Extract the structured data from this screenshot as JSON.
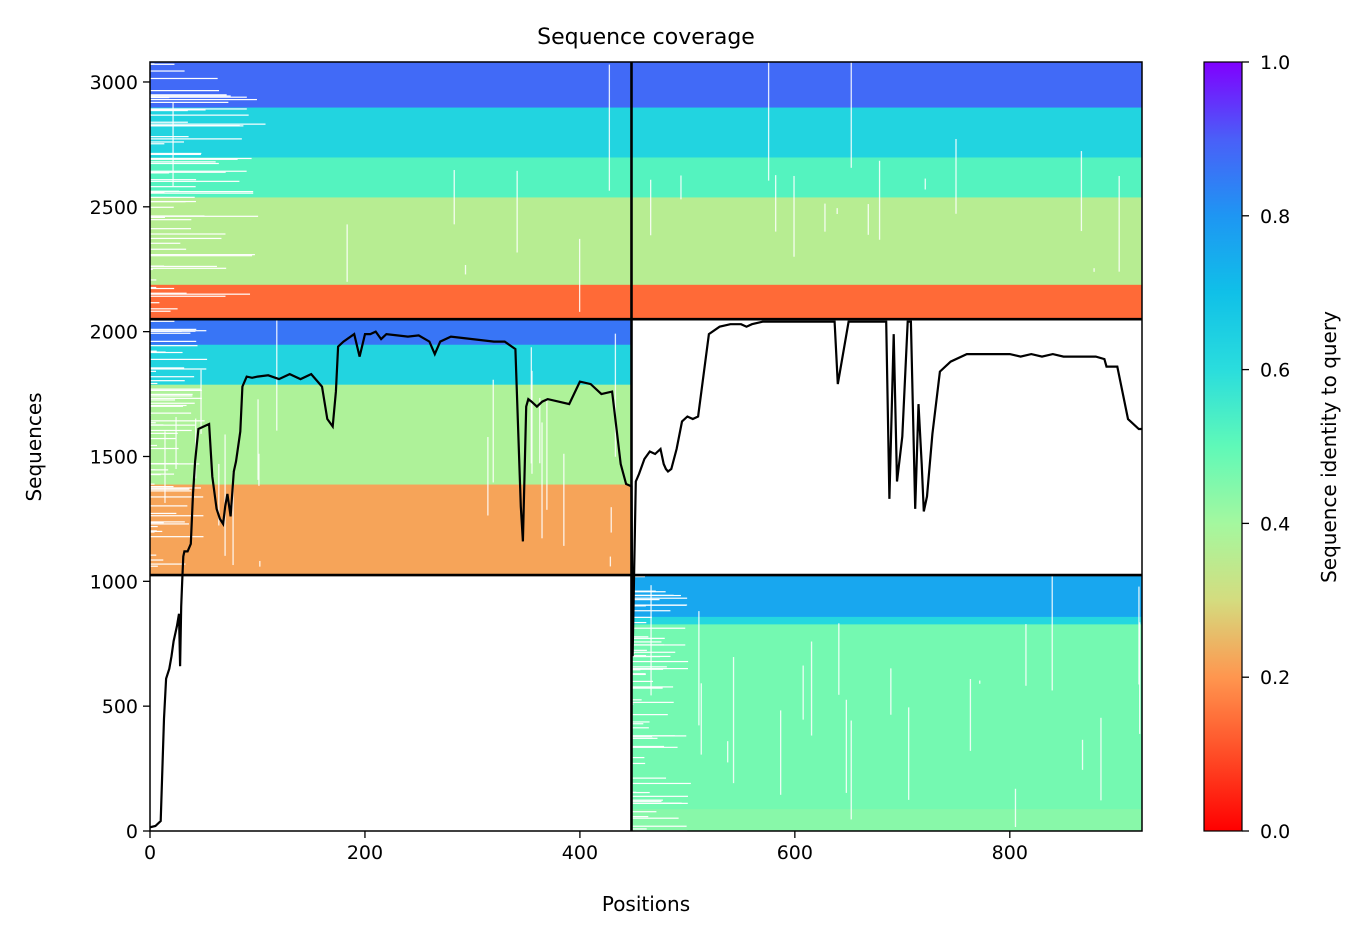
{
  "chart_data": {
    "type": "heatmap",
    "title": "Sequence coverage",
    "xlabel": "Positions",
    "ylabel": "Sequences",
    "xlim": [
      0,
      923
    ],
    "ylim": [
      0,
      3080
    ],
    "x_ticks": [
      0,
      200,
      400,
      600,
      800
    ],
    "y_ticks": [
      0,
      500,
      1000,
      1500,
      2000,
      2500,
      3000
    ],
    "colorbar": {
      "label": "Sequence identity to query",
      "colormap": "rainbow_r",
      "range": [
        0,
        1
      ],
      "ticks": [
        "0.0",
        "0.2",
        "0.4",
        "0.6",
        "0.8",
        "1.0"
      ],
      "stops": [
        {
          "value": 0.0,
          "color": "#ff0000"
        },
        {
          "value": 0.1,
          "color": "#ff4d27"
        },
        {
          "value": 0.2,
          "color": "#ff964f"
        },
        {
          "value": 0.3,
          "color": "#d4dc7f"
        },
        {
          "value": 0.4,
          "color": "#a4f89f"
        },
        {
          "value": 0.5,
          "color": "#5ff9b8"
        },
        {
          "value": 0.6,
          "color": "#2adddd"
        },
        {
          "value": 0.7,
          "color": "#10c0e8"
        },
        {
          "value": 0.8,
          "color": "#1e96f3"
        },
        {
          "value": 0.9,
          "color": "#4a5ff8"
        },
        {
          "value": 1.0,
          "color": "#8000ff"
        }
      ]
    },
    "chain_boundaries": {
      "x": [
        448
      ],
      "y": [
        1025,
        2050
      ]
    },
    "blocks": [
      {
        "x": [
          448,
          923
        ],
        "y": [
          0,
          1025
        ],
        "bands": [
          {
            "y0": 0,
            "y1": 90,
            "identity": 0.44
          },
          {
            "y0": 90,
            "y1": 830,
            "identity": 0.47
          },
          {
            "y0": 830,
            "y1": 860,
            "identity": 0.62
          },
          {
            "y0": 860,
            "y1": 1025,
            "identity": 0.76
          }
        ]
      },
      {
        "x": [
          0,
          448
        ],
        "y": [
          1025,
          2050
        ],
        "bands": [
          {
            "y0": 1025,
            "y1": 1390,
            "identity": 0.22
          },
          {
            "y0": 1390,
            "y1": 1790,
            "identity": 0.38
          },
          {
            "y0": 1790,
            "y1": 1950,
            "identity": 0.63
          },
          {
            "y0": 1950,
            "y1": 2050,
            "identity": 0.86
          }
        ]
      },
      {
        "x": [
          0,
          923
        ],
        "y": [
          2050,
          3080
        ],
        "bands": [
          {
            "y0": 2050,
            "y1": 2190,
            "identity": 0.14
          },
          {
            "y0": 2190,
            "y1": 2540,
            "identity": 0.36
          },
          {
            "y0": 2540,
            "y1": 2700,
            "identity": 0.52
          },
          {
            "y0": 2700,
            "y1": 2900,
            "identity": 0.63
          },
          {
            "y0": 2900,
            "y1": 3080,
            "identity": 0.88
          }
        ]
      }
    ],
    "coverage_line": {
      "color": "#000000",
      "x": [
        0,
        5,
        10,
        13,
        15,
        18,
        20,
        22,
        25,
        27,
        28,
        29,
        30,
        31,
        32,
        35,
        38,
        40,
        42,
        45,
        50,
        55,
        58,
        62,
        65,
        68,
        70,
        72,
        75,
        78,
        80,
        84,
        86,
        90,
        95,
        100,
        110,
        120,
        130,
        140,
        150,
        160,
        165,
        170,
        173,
        175,
        180,
        190,
        195,
        200,
        205,
        210,
        215,
        220,
        230,
        240,
        250,
        260,
        265,
        270,
        280,
        290,
        300,
        310,
        320,
        330,
        340,
        345,
        347,
        350,
        352,
        355,
        360,
        365,
        370,
        380,
        390,
        400,
        410,
        420,
        430,
        438,
        443,
        448,
        449,
        452,
        455,
        460,
        465,
        470,
        475,
        478,
        480,
        482,
        485,
        490,
        495,
        500,
        505,
        510,
        520,
        530,
        540,
        550,
        555,
        560,
        570,
        580,
        590,
        600,
        610,
        620,
        630,
        634,
        637,
        640,
        650,
        660,
        670,
        680,
        685,
        688,
        692,
        695,
        700,
        705,
        708,
        712,
        715,
        718,
        720,
        723,
        728,
        735,
        745,
        760,
        780,
        800,
        810,
        820,
        830,
        840,
        850,
        860,
        870,
        880,
        888,
        890,
        900,
        910,
        920,
        923
      ],
      "y": [
        15,
        20,
        40,
        450,
        610,
        650,
        700,
        760,
        820,
        870,
        660,
        900,
        1000,
        1100,
        1120,
        1120,
        1150,
        1350,
        1480,
        1610,
        1620,
        1630,
        1420,
        1290,
        1250,
        1230,
        1300,
        1350,
        1260,
        1440,
        1480,
        1600,
        1780,
        1820,
        1815,
        1820,
        1825,
        1810,
        1830,
        1810,
        1830,
        1780,
        1650,
        1620,
        1760,
        1940,
        1960,
        1990,
        1900,
        1990,
        1990,
        2000,
        1970,
        1990,
        1985,
        1980,
        1985,
        1960,
        1910,
        1960,
        1980,
        1975,
        1970,
        1965,
        1960,
        1960,
        1930,
        1300,
        1160,
        1700,
        1730,
        1720,
        1700,
        1720,
        1730,
        1720,
        1710,
        1800,
        1790,
        1750,
        1760,
        1470,
        1390,
        1380,
        700,
        1400,
        1430,
        1490,
        1520,
        1510,
        1530,
        1470,
        1450,
        1440,
        1450,
        1530,
        1640,
        1660,
        1650,
        1660,
        1990,
        2020,
        2030,
        2030,
        2020,
        2030,
        2040,
        2040,
        2040,
        2040,
        2040,
        2040,
        2040,
        2040,
        2040,
        1790,
        2040,
        2040,
        2040,
        2040,
        2040,
        1330,
        1990,
        1400,
        1580,
        2040,
        2040,
        1290,
        1710,
        1470,
        1280,
        1340,
        1590,
        1840,
        1880,
        1910,
        1910,
        1910,
        1900,
        1910,
        1900,
        1910,
        1900,
        1900,
        1900,
        1900,
        1890,
        1860,
        1860,
        1650,
        1610,
        1610
      ]
    }
  }
}
